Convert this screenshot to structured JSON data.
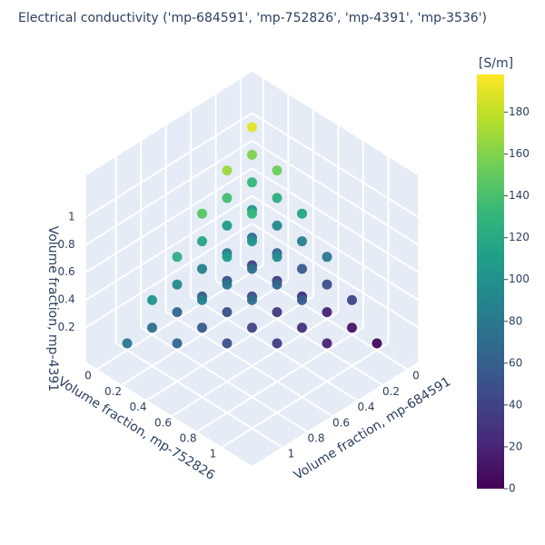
{
  "chart_data": {
    "type": "scatter3d",
    "title": "Electrical conductivity ('mp-684591', 'mp-752826', 'mp-4391', 'mp-3536')",
    "xlabel": "Volume fraction, mp-684591",
    "ylabel": "Volume fraction, mp-752826",
    "zlabel": "Volume fraction, mp-4391",
    "x": [
      0,
      0,
      0,
      0,
      0,
      0,
      0.2,
      0.2,
      0.2,
      0.2,
      0.2,
      0.4,
      0.4,
      0.4,
      0.4,
      0.6,
      0.6,
      0.6,
      0.8,
      0.8,
      1,
      0,
      0,
      0,
      0,
      0,
      0.2,
      0.2,
      0.2,
      0.2,
      0.4,
      0.4,
      0.4,
      0.6,
      0.6,
      0.8,
      0,
      0,
      0,
      0,
      0.2,
      0.2,
      0.2,
      0.4,
      0.4,
      0.6,
      0,
      0,
      0,
      0.2,
      0.2,
      0.4,
      0,
      0,
      0.2,
      0
    ],
    "y": [
      0,
      0.2,
      0.4,
      0.6,
      0.8,
      1,
      0,
      0.2,
      0.4,
      0.6,
      0.8,
      0,
      0.2,
      0.4,
      0.6,
      0,
      0.2,
      0.4,
      0,
      0.2,
      0,
      0,
      0.2,
      0.4,
      0.6,
      0.8,
      0,
      0.2,
      0.4,
      0.6,
      0,
      0.2,
      0.4,
      0,
      0.2,
      0,
      0,
      0.2,
      0.4,
      0.6,
      0,
      0.2,
      0.4,
      0,
      0.2,
      0,
      0,
      0.2,
      0.4,
      0,
      0.2,
      0,
      0,
      0.2,
      0,
      0
    ],
    "z": [
      0,
      0,
      0,
      0,
      0,
      0,
      0,
      0,
      0,
      0,
      0,
      0,
      0,
      0,
      0,
      0,
      0,
      0,
      0,
      0,
      0,
      0.2,
      0.2,
      0.2,
      0.2,
      0.2,
      0.2,
      0.2,
      0.2,
      0.2,
      0.2,
      0.2,
      0.2,
      0.2,
      0.2,
      0.2,
      0.4,
      0.4,
      0.4,
      0.4,
      0.4,
      0.4,
      0.4,
      0.4,
      0.4,
      0.4,
      0.6,
      0.6,
      0.6,
      0.6,
      0.6,
      0.6,
      0.8,
      0.8,
      0.8,
      1
    ],
    "values": [
      40,
      33,
      26,
      19,
      12,
      5,
      48,
      41,
      34,
      27,
      20,
      56,
      49,
      42,
      35,
      64,
      57,
      50,
      72,
      65,
      80,
      70,
      63,
      56,
      49,
      42,
      78,
      71,
      64,
      57,
      86,
      79,
      72,
      94,
      87,
      102,
      100,
      93,
      86,
      79,
      108,
      101,
      94,
      116,
      109,
      124,
      130,
      123,
      116,
      138,
      131,
      146,
      160,
      153,
      168,
      190
    ],
    "xlim": [
      -0.09,
      1.24
    ],
    "ylim": [
      -0.09,
      1.24
    ],
    "zlim": [
      -0.05,
      1.3
    ],
    "xticks": [
      0,
      0.2,
      0.4,
      0.6,
      0.8,
      1
    ],
    "yticks": [
      0,
      0.2,
      0.4,
      0.6,
      0.8,
      1
    ],
    "zticks": [
      0.2,
      0.4,
      0.6,
      0.8,
      1
    ],
    "colorscale": [
      "#440154",
      "#482878",
      "#3e4989",
      "#31688e",
      "#26828e",
      "#1f9e89",
      "#35b779",
      "#6ece58",
      "#b5de2b",
      "#fde725"
    ],
    "clim": [
      0,
      198
    ],
    "cticks": [
      0,
      20,
      40,
      60,
      80,
      100,
      120,
      140,
      160,
      180
    ],
    "colorbar_title": "[S/m]"
  }
}
